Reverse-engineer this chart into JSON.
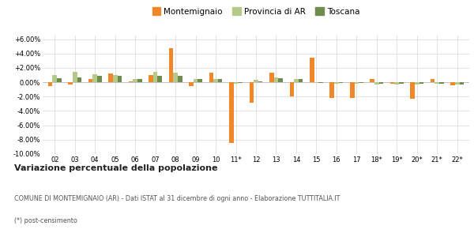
{
  "years": [
    "02",
    "03",
    "04",
    "05",
    "06",
    "07",
    "08",
    "09",
    "10",
    "11*",
    "12",
    "13",
    "14",
    "15",
    "16",
    "17",
    "18*",
    "19*",
    "20*",
    "21*",
    "22*"
  ],
  "montemignaio": [
    -0.5,
    -0.3,
    0.5,
    1.2,
    0.1,
    1.0,
    4.7,
    -0.5,
    1.3,
    -8.5,
    -2.8,
    1.3,
    -2.0,
    3.4,
    -2.2,
    -2.2,
    0.5,
    -0.2,
    -2.3,
    0.4,
    -0.4
  ],
  "provincia_ar": [
    1.0,
    1.4,
    1.1,
    1.0,
    0.5,
    1.4,
    1.3,
    0.5,
    0.5,
    -0.2,
    0.3,
    0.7,
    0.5,
    -0.1,
    -0.2,
    -0.2,
    -0.3,
    -0.3,
    -0.3,
    -0.2,
    -0.3
  ],
  "toscana": [
    0.6,
    0.7,
    0.9,
    0.9,
    0.5,
    0.9,
    0.9,
    0.5,
    0.5,
    -0.1,
    0.1,
    0.6,
    0.5,
    -0.1,
    -0.1,
    -0.1,
    -0.2,
    -0.2,
    -0.2,
    -0.2,
    -0.3
  ],
  "color_montemignaio": "#f0882a",
  "color_provincia": "#b5c98a",
  "color_toscana": "#6e8c4e",
  "title": "Variazione percentuale della popolazione",
  "xlabel": "",
  "ylabel": "",
  "ylim": [
    -10.0,
    6.5
  ],
  "yticks": [
    -10.0,
    -8.0,
    -6.0,
    -4.0,
    -2.0,
    0.0,
    2.0,
    4.0,
    6.0
  ],
  "legend_labels": [
    "Montemignaio",
    "Provincia di AR",
    "Toscana"
  ],
  "footer_line1": "COMUNE DI MONTEMIGNAIO (AR) - Dati ISTAT al 31 dicembre di ogni anno - Elaborazione TUTTITALIA.IT",
  "footer_line2": "(*) post-censimento",
  "background_color": "#ffffff",
  "grid_color": "#dddddd"
}
